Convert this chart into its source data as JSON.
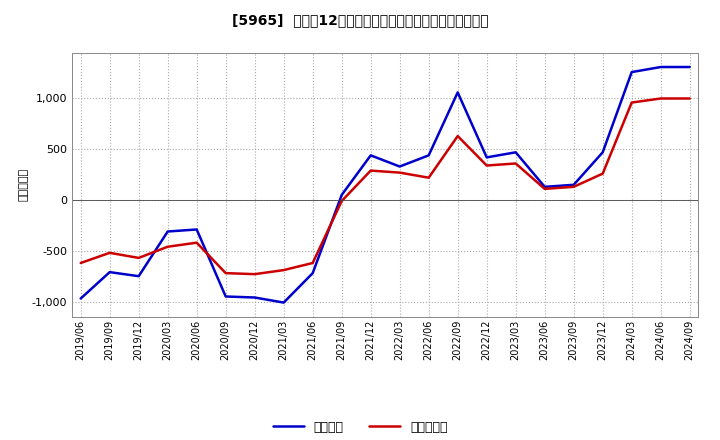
{
  "title": "[5965]  利益だ12か月移動合計の対前年同期増減額の推移",
  "ylabel": "（百万円）",
  "background_color": "#ffffff",
  "plot_bg_color": "#ffffff",
  "grid_color": "#aaaaaa",
  "ylim": [
    -1150,
    1450
  ],
  "yticks": [
    -1000,
    -500,
    0,
    500,
    1000
  ],
  "legend_labels": [
    "経常利益",
    "当期純利益"
  ],
  "line_colors": [
    "#0000cc",
    "#cc0000"
  ],
  "x_labels": [
    "2019/06",
    "2019/09",
    "2019/12",
    "2020/03",
    "2020/06",
    "2020/09",
    "2020/12",
    "2021/03",
    "2021/06",
    "2021/09",
    "2021/12",
    "2022/03",
    "2022/06",
    "2022/09",
    "2022/12",
    "2023/03",
    "2023/06",
    "2023/09",
    "2023/12",
    "2024/03",
    "2024/06",
    "2024/09"
  ],
  "keijo_rieki": [
    -970,
    -710,
    -750,
    -310,
    -290,
    -950,
    -960,
    -1010,
    -720,
    50,
    440,
    330,
    440,
    1060,
    420,
    470,
    130,
    150,
    470,
    1260,
    1310,
    1310
  ],
  "touki_junrieki": [
    -620,
    -520,
    -570,
    -460,
    -420,
    -720,
    -730,
    -690,
    -620,
    -10,
    290,
    270,
    220,
    630,
    340,
    360,
    110,
    130,
    260,
    960,
    1000,
    1000
  ]
}
